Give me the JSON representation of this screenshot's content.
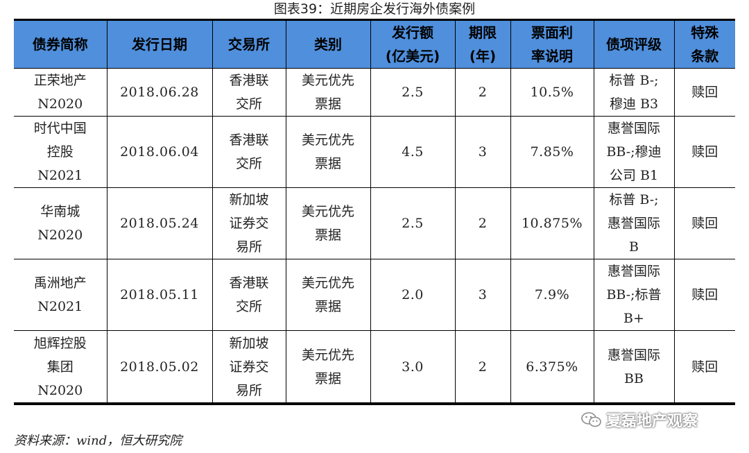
{
  "caption": "图表39：近期房企发行海外债案例",
  "headers": [
    "债券简称",
    "发行日期",
    "交易所",
    "类别",
    "发行额\n(亿美元)",
    "期限\n(年)",
    "票面利\n率说明",
    "债项评级",
    "特殊\n条款"
  ],
  "rows": [
    {
      "name": "正荣地产\nN2020",
      "date": "2018.06.28",
      "exchange": "香港联\n交所",
      "category": "美元优先\n票据",
      "amount": "2.5",
      "term": "2",
      "coupon": "10.5%",
      "rating": "标普 B-;\n穆迪 B3",
      "clause": "赎回"
    },
    {
      "name": "时代中国\n控股\nN2021",
      "date": "2018.06.04",
      "exchange": "香港联\n交所",
      "category": "美元优先\n票据",
      "amount": "4.5",
      "term": "3",
      "coupon": "7.85%",
      "rating": "惠誉国际\nBB-;穆迪\n公司 B1",
      "clause": "赎回"
    },
    {
      "name": "华南城\nN2020",
      "date": "2018.05.24",
      "exchange": "新加坡\n证券交\n易所",
      "category": "美元优先\n票据",
      "amount": "2.5",
      "term": "2",
      "coupon": "10.875%",
      "rating": "标普 B-;\n惠誉国际\nB",
      "clause": "赎回"
    },
    {
      "name": "禹洲地产\nN2021",
      "date": "2018.05.11",
      "exchange": "香港联\n交所",
      "category": "美元优先\n票据",
      "amount": "2.0",
      "term": "3",
      "coupon": "7.9%",
      "rating": "惠誉国际\nBB-;标普\nB+",
      "clause": "赎回"
    },
    {
      "name": "旭辉控股\n集团\nN2020",
      "date": "2018.05.02",
      "exchange": "新加坡\n证券交\n易所",
      "category": "美元优先\n票据",
      "amount": "3.0",
      "term": "2",
      "coupon": "6.375%",
      "rating": "惠誉国际\nBB",
      "clause": "赎回"
    }
  ],
  "source": "资料来源：wind，恒大研究院",
  "watermark": "夏磊地产观察",
  "colors": {
    "header_bg": "#4f8fdc"
  }
}
